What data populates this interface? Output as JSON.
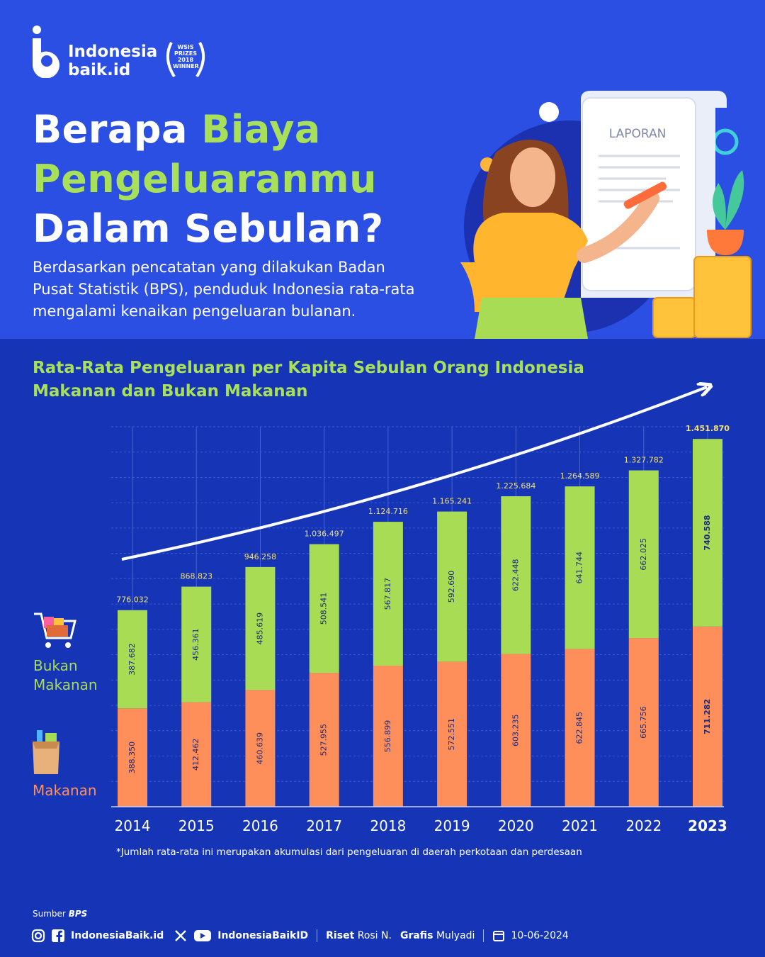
{
  "header": {
    "logo_lines": [
      "Indonesia",
      "baik.id"
    ],
    "award_lines": [
      "WSIS",
      "PRIZES",
      "2018",
      "WINNER"
    ],
    "title_parts": [
      "Berapa",
      "Biaya",
      "Pengeluaranmu",
      "Dalam Sebulan?"
    ],
    "intro_lines": [
      "Berdasarkan pencatatan yang dilakukan Badan",
      "Pusat Statistik (BPS), penduduk Indonesia rata-rata",
      "mengalami kenaikan pengeluaran bulanan."
    ]
  },
  "illustration": {
    "document_label": "LAPORAN"
  },
  "chart_data": {
    "type": "stacked_bar",
    "title": "Rata-Rata Pengeluaran per Kapita Sebulan Orang Indonesia",
    "subtitle": "Makanan dan Bukan Makanan",
    "categories": [
      "2014",
      "2015",
      "2016",
      "2017",
      "2018",
      "2019",
      "2020",
      "2021",
      "2022",
      "2023"
    ],
    "series": [
      {
        "name": "Makanan",
        "color": "#ff8f5a",
        "values": [
          388350,
          412462,
          460639,
          527955,
          556899,
          572551,
          603235,
          622845,
          665756,
          711282
        ],
        "value_labels": [
          "388.350",
          "412.462",
          "460.639",
          "527.955",
          "556.899",
          "572.551",
          "603.235",
          "622.845",
          "665.756",
          "711.282"
        ]
      },
      {
        "name": "Bukan Makanan",
        "color": "#a9dc55",
        "values": [
          387682,
          456361,
          485619,
          508541,
          567817,
          592690,
          622448,
          641744,
          662025,
          740588
        ],
        "value_labels": [
          "387.682",
          "456.361",
          "485.619",
          "508.541",
          "567.817",
          "592.690",
          "622.448",
          "641.744",
          "662.025",
          "740.588"
        ]
      }
    ],
    "totals": {
      "color": "#f4e070",
      "values": [
        776032,
        868823,
        946258,
        1036497,
        1124716,
        1165241,
        1225684,
        1264589,
        1327782,
        1451870
      ],
      "value_labels": [
        "776.032",
        "868.823",
        "946.258",
        "1.036.497",
        "1.124.716",
        "1.165.241",
        "1.225.684",
        "1.264.589",
        "1.327.782",
        "1.451.870"
      ]
    },
    "ylim": [
      0,
      1500000
    ],
    "yticks": [
      0,
      100000,
      200000,
      300000,
      400000,
      500000,
      600000,
      700000,
      800000,
      900000,
      1000000,
      1100000,
      1200000,
      1300000,
      1400000,
      1500000
    ],
    "grid": true,
    "footnote": "*Jumlah rata-rata ini merupakan akumulasi dari pengeluaran di daerah perkotaan dan perdesaan"
  },
  "source": {
    "label": "Sumber",
    "name": "BPS"
  },
  "footer": {
    "website": "IndonesiaBaik.id",
    "handle": "IndonesiaBaikID",
    "research_label": "Riset",
    "research": "Rosi N.",
    "design_label": "Grafis",
    "design": "Mulyadi",
    "date": "10-06-2024"
  }
}
